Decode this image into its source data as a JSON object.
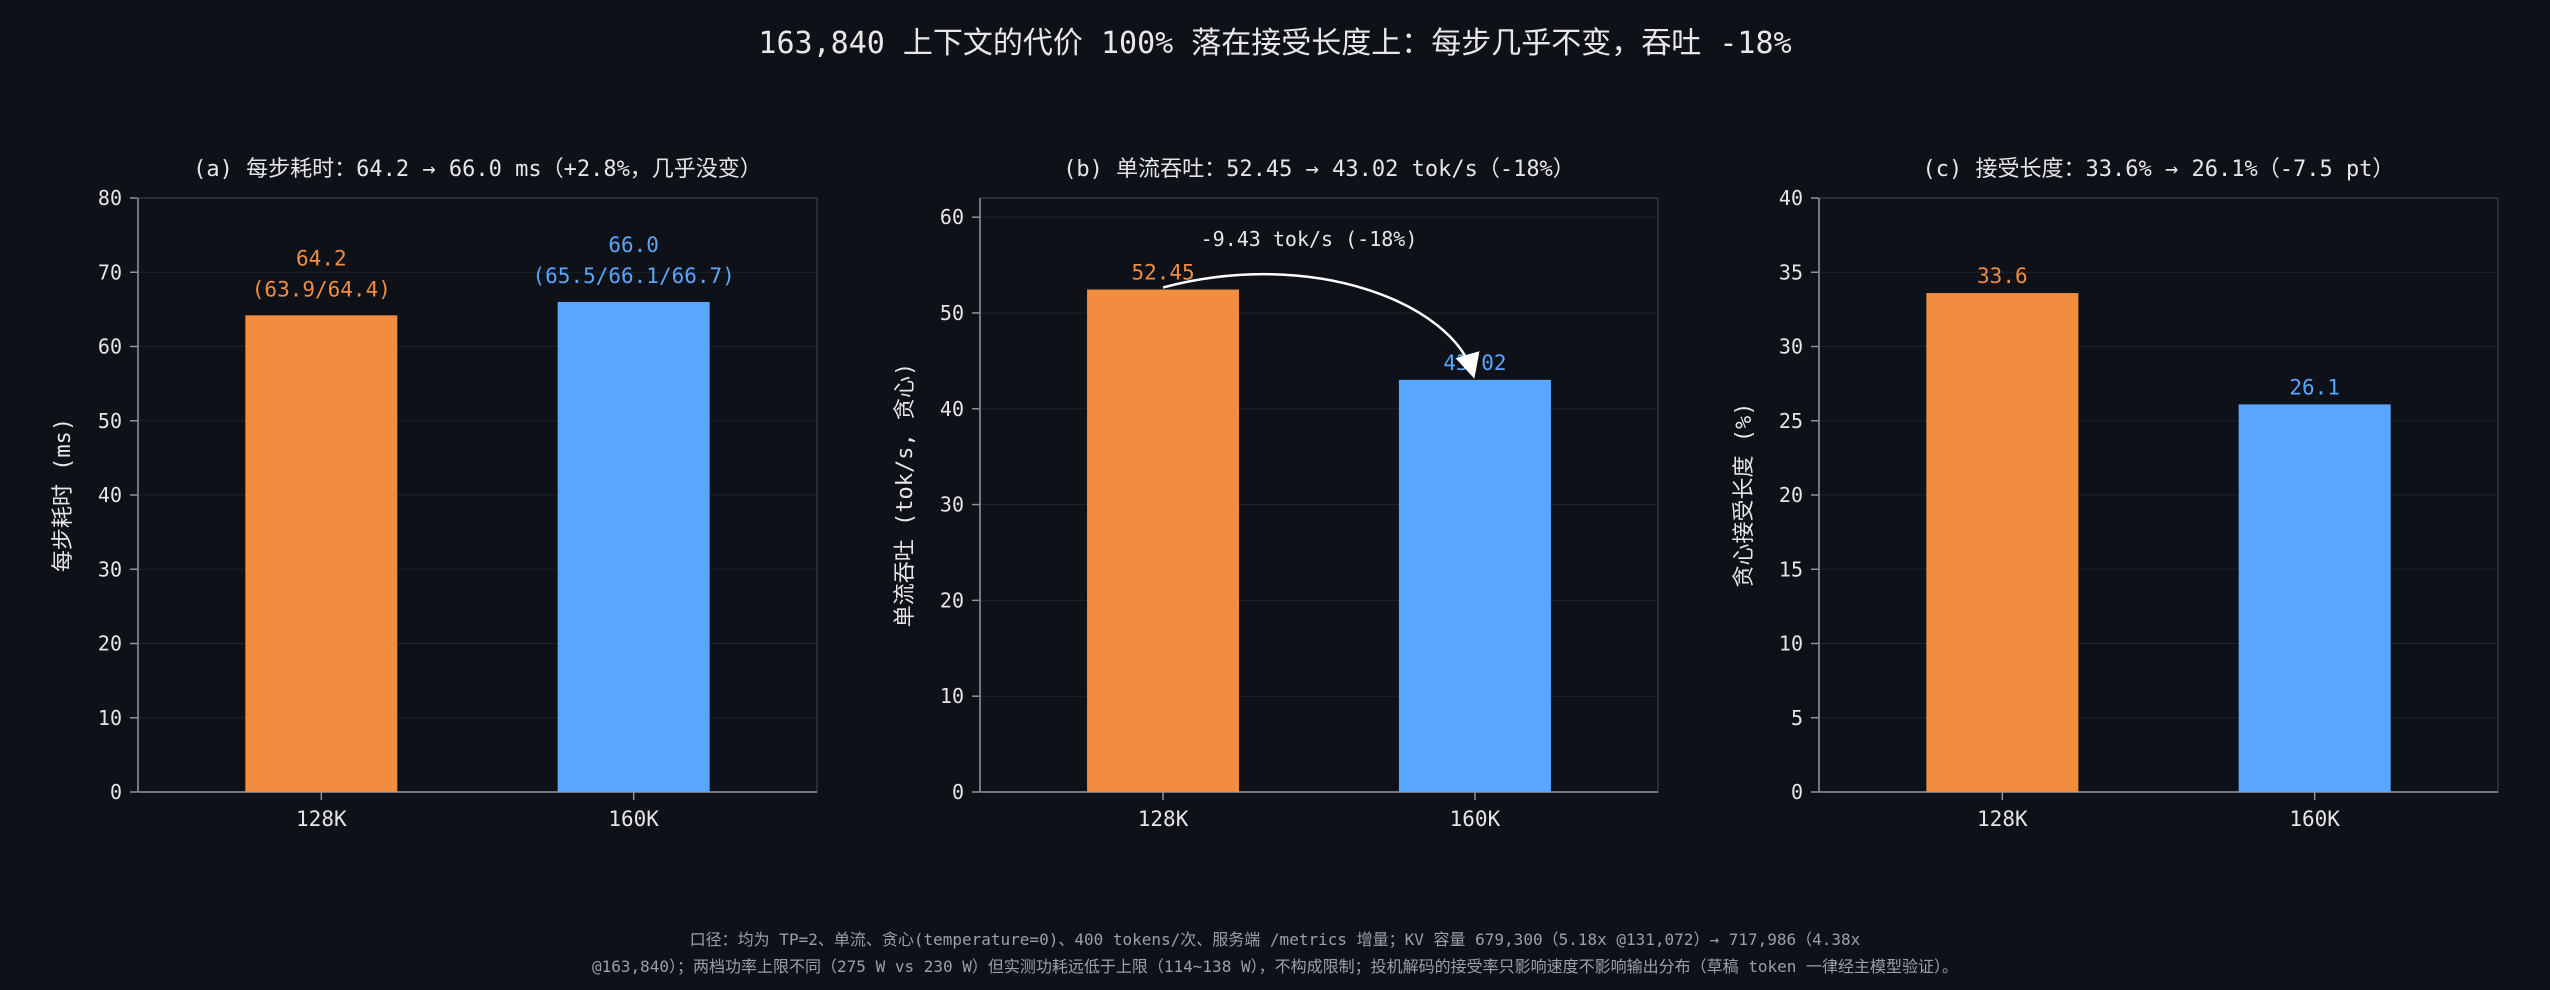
{
  "suptitle": "163,840 上下文的代价 100% 落在接受长度上：每步几乎不变，吞吐 -18%",
  "footnote": {
    "line1": "口径：均为 TP=2、单流、贪心(temperature=0)、400 tokens/次、服务端 /metrics 增量；KV 容量 679,300（5.18x @131,072）→ 717,986（4.38x",
    "line2": "@163,840）；两档功率上限不同（275 W vs 230 W）但实测功耗远低于上限（114~138 W），不构成限制；投机解码的接受率只影响速度不影响输出分布（草稿 token 一律经主模型验证）。"
  },
  "colors": {
    "background": "#0e1117",
    "bar_128k": "#f28c40",
    "bar_160k": "#58a6ff",
    "axis": "#8b949e",
    "grid": "#1f242c",
    "text": "#e6e6e6"
  },
  "chart_data": [
    {
      "type": "bar",
      "title": "(a) 每步耗时：64.2 → 66.0 ms（+2.8%，几乎没变）",
      "categories": [
        "128K",
        "160K"
      ],
      "values": [
        64.2,
        66.0
      ],
      "value_labels": [
        "64.2",
        "66.0"
      ],
      "value_sublabels": [
        "(63.9/64.4)",
        "(65.5/66.1/66.7)"
      ],
      "xlabel": "",
      "ylabel": "每步耗时 (ms)",
      "ylim": [
        0,
        80
      ],
      "yticks": [
        0,
        10,
        20,
        30,
        40,
        50,
        60,
        70,
        80
      ],
      "grid": true
    },
    {
      "type": "bar",
      "title": "(b) 单流吞吐：52.45 → 43.02 tok/s（-18%）",
      "categories": [
        "128K",
        "160K"
      ],
      "values": [
        52.45,
        43.02
      ],
      "value_labels": [
        "52.45",
        "43.02"
      ],
      "annotation": "-9.43 tok/s (-18%)",
      "xlabel": "",
      "ylabel": "单流吞吐 (tok/s, 贪心)",
      "ylim": [
        0,
        62
      ],
      "yticks": [
        0,
        10,
        20,
        30,
        40,
        50,
        60
      ],
      "grid": true
    },
    {
      "type": "bar",
      "title": "(c) 接受长度：33.6% → 26.1%（-7.5 pt）",
      "categories": [
        "128K",
        "160K"
      ],
      "values": [
        33.6,
        26.1
      ],
      "value_labels": [
        "33.6",
        "26.1"
      ],
      "xlabel": "",
      "ylabel": "贪心接受长度 (%)",
      "ylim": [
        0,
        40
      ],
      "yticks": [
        0,
        5,
        10,
        15,
        20,
        25,
        30,
        35,
        40
      ],
      "grid": true
    }
  ]
}
